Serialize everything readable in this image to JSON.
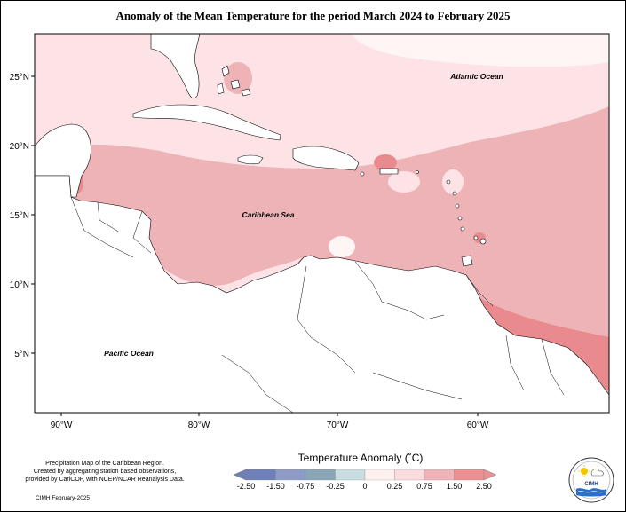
{
  "title": "Anomaly of the Mean Temperature for the period March 2024 to February 2025",
  "map": {
    "lat_labels": [
      "25°N",
      "20°N",
      "15°N",
      "10°N",
      "5°N"
    ],
    "lon_labels": [
      "90°W",
      "80°W",
      "70°W",
      "60°W"
    ],
    "ocean_labels": {
      "atlantic": "Atlantic Ocean",
      "caribbean": "Caribbean Sea",
      "pacific": "Pacific Ocean"
    },
    "colors": {
      "land": "#ffffff",
      "anomaly_0_25": "#fde3e6",
      "anomaly_0_75": "#edb3b7",
      "anomaly_1_50": "#e98a8e",
      "anomaly_near0": "#fff5f5",
      "anomaly_high": "#e46466"
    }
  },
  "legend": {
    "title": "Temperature Anomaly (˚C)",
    "ticks": [
      "-2.50",
      "-1.50",
      "-0.75",
      "-0.25",
      "0",
      "0.25",
      "0.75",
      "1.50",
      "2.50"
    ],
    "colors": [
      "#6f7fb7",
      "#8d9cc7",
      "#8aa6b6",
      "#c9dee1",
      "#fff0f0",
      "#fadbde",
      "#efb4b8",
      "#ec8f93"
    ]
  },
  "credits": {
    "line1": "Precipitation Map of the Caribbean Region.",
    "line2": "Created by aggregating station based observations,",
    "line3": "provided by CariCOF, with NCEP/NCAR Reanalysis Data.",
    "date": "CIMH February-2025"
  },
  "logo": {
    "text": "CIMH",
    "icon": "cimh-logo-icon"
  }
}
